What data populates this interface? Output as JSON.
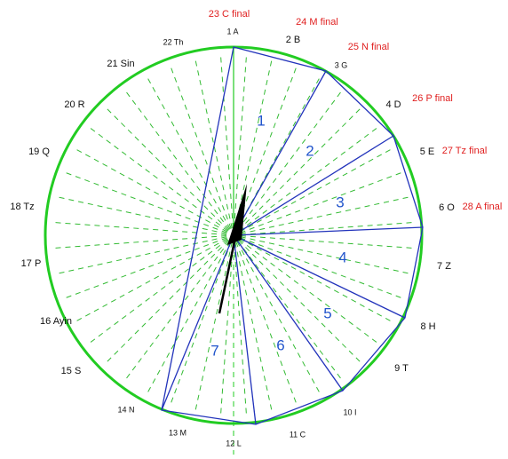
{
  "letters": [
    "1 A",
    "2 B",
    "3 G",
    "4 D",
    "5 E",
    "6 O",
    "7 Z",
    "8 H",
    "9 T",
    "10 I",
    "11 C",
    "12 L",
    "13 M",
    "14 N",
    "15 S",
    "16 Ayin",
    "17 P",
    "18 Tz",
    "19 Q",
    "20 R",
    "21 Sin",
    "22 Th"
  ],
  "finals": [
    "23 C final",
    "24 M final",
    "25 N final",
    "26 P final",
    "27 Tz final",
    "28 A final"
  ],
  "sectors": [
    "1",
    "2",
    "3",
    "4",
    "5",
    "6",
    "7"
  ]
}
